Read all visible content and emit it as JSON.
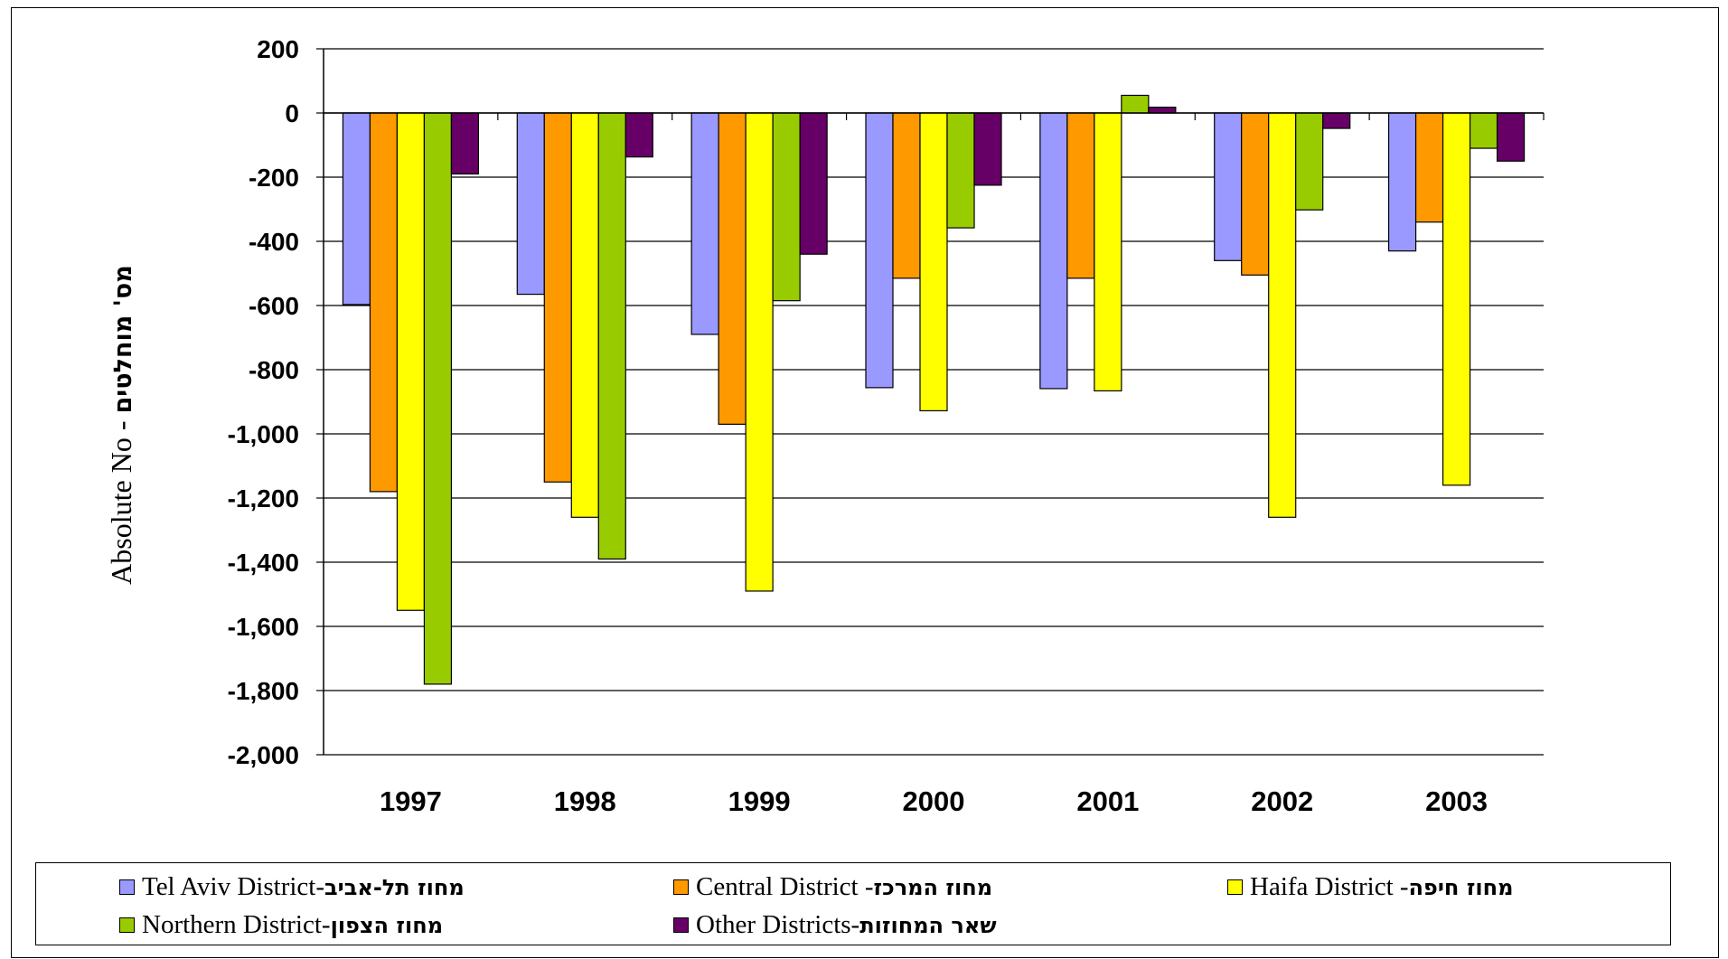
{
  "chart_data": {
    "type": "bar",
    "categories": [
      "1997",
      "1998",
      "1999",
      "2000",
      "2001",
      "2002",
      "2003"
    ],
    "series": [
      {
        "name": "Tel Aviv District-מחוז תל-אביב",
        "color": "#9999FF",
        "values": [
          -597,
          -565,
          -690,
          -856,
          -859,
          -460,
          -430
        ]
      },
      {
        "name": "Central District - מחוז המרכז",
        "color": "#FF9900",
        "values": [
          -1180,
          -1150,
          -970,
          -515,
          -515,
          -505,
          -340
        ]
      },
      {
        "name": "Haifa District - מחוז חיפה",
        "color": "#FFFF00",
        "values": [
          -1550,
          -1260,
          -1490,
          -928,
          -866,
          -1260,
          -1160
        ]
      },
      {
        "name": "Northern District- מחוז הצפון",
        "color": "#99CC00",
        "values": [
          -1780,
          -1390,
          -585,
          -358,
          55,
          -302,
          -110
        ]
      },
      {
        "name": "Other Districts- שאר המחוזות",
        "color": "#660066",
        "values": [
          -190,
          -137,
          -440,
          -225,
          18,
          -48,
          -150
        ]
      }
    ],
    "ylim": [
      -2000,
      200
    ],
    "yticks": [
      200,
      0,
      -200,
      -400,
      -600,
      -800,
      -1000,
      -1200,
      -1400,
      -1600,
      -1800,
      -2000
    ],
    "ytick_labels": [
      "200",
      "0",
      "-200",
      "-400",
      "-600",
      "-800",
      "-1,000",
      "-1,200",
      "-1,400",
      "-1,600",
      "-1,800",
      "-2,000"
    ],
    "ylabel_en": "Absolute No",
    "ylabel_sep": "-",
    "ylabel_he": "מס' מוחלטים",
    "xlabel": "",
    "grid": true,
    "legend_position": "bottom"
  },
  "legend": [
    {
      "en": "Tel Aviv District-",
      "he": "מחוז תל-אביב"
    },
    {
      "en": "Central District - ",
      "he": "מחוז המרכז"
    },
    {
      "en": "Haifa District - ",
      "he": "מחוז חיפה"
    },
    {
      "en": "Northern District- ",
      "he": "מחוז הצפון"
    },
    {
      "en": "Other Districts- ",
      "he": "שאר המחוזות"
    }
  ]
}
